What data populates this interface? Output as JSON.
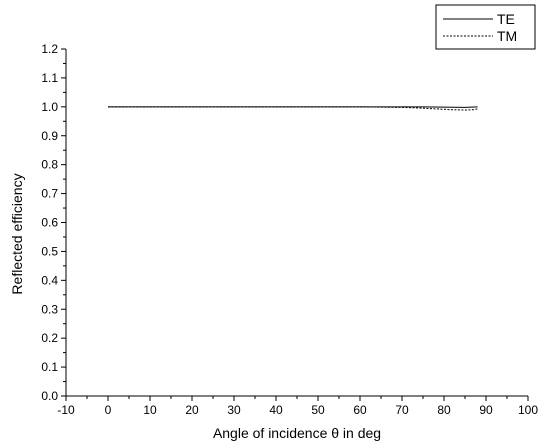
{
  "chart_data": {
    "type": "line",
    "title": "",
    "xlabel": "Angle of incidence θ in deg",
    "ylabel": "Reflected efficiency",
    "xlim": [
      -10,
      100
    ],
    "ylim": [
      0.0,
      1.2
    ],
    "xticks": [
      "-10",
      "0",
      "10",
      "20",
      "30",
      "40",
      "50",
      "60",
      "70",
      "80",
      "90",
      "100"
    ],
    "yticks": [
      "0.0",
      "0.1",
      "0.2",
      "0.3",
      "0.4",
      "0.5",
      "0.6",
      "0.7",
      "0.8",
      "0.9",
      "1.0",
      "1.1",
      "1.2"
    ],
    "grid": false,
    "legend_position": "top-right",
    "series": [
      {
        "name": "TE",
        "style": "solid",
        "color": "#000000",
        "x": [
          0,
          10,
          20,
          30,
          40,
          50,
          60,
          70,
          75,
          80,
          85,
          88
        ],
        "y": [
          1.0,
          1.0,
          1.0,
          1.0,
          1.0,
          1.0,
          1.0,
          1.0,
          1.0,
          0.999,
          0.998,
          1.0
        ]
      },
      {
        "name": "TM",
        "style": "dashed",
        "color": "#000000",
        "x": [
          0,
          10,
          20,
          30,
          40,
          50,
          60,
          65,
          70,
          74,
          78,
          82,
          85,
          87,
          88
        ],
        "y": [
          1.0,
          1.0,
          1.0,
          1.0,
          1.0,
          1.0,
          1.0,
          0.999,
          0.998,
          0.996,
          0.993,
          0.99,
          0.989,
          0.99,
          0.993
        ]
      }
    ]
  }
}
